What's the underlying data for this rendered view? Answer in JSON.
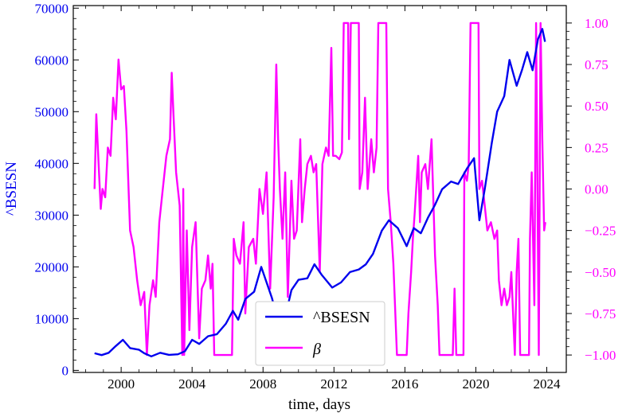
{
  "chart_data": {
    "type": "line",
    "xlabel": "time, days",
    "ylabel_left": "^BSESN",
    "ylabel_right": "",
    "xlim": [
      1997.3,
      2025.1
    ],
    "ylim_left": [
      -400,
      70500
    ],
    "ylim_right": [
      -1.105,
      1.105
    ],
    "x_ticks": [
      2000,
      2004,
      2008,
      2012,
      2016,
      2020,
      2024
    ],
    "y_left_ticks": [
      0,
      10000,
      20000,
      30000,
      40000,
      50000,
      60000,
      70000
    ],
    "y_right_ticks": [
      -1.0,
      -0.75,
      -0.5,
      -0.25,
      0.0,
      0.25,
      0.5,
      0.75,
      1.0
    ],
    "y_right_tick_labels": [
      "−1.00",
      "−0.75",
      "−0.50",
      "−0.25",
      "0.00",
      "0.25",
      "0.50",
      "0.75",
      "1.00"
    ],
    "grid": false,
    "legend_position": "bottom-center",
    "colors": {
      "bsesn": "#0000ee",
      "beta": "#ff00ff",
      "right_axis": "#ff00ff",
      "left_axis": "#0000ee"
    },
    "series": [
      {
        "name": "^BSESN",
        "axis": "left",
        "points": [
          [
            1998.5,
            3300
          ],
          [
            1998.9,
            2950
          ],
          [
            1999.3,
            3400
          ],
          [
            1999.7,
            4700
          ],
          [
            2000.1,
            5900
          ],
          [
            2000.5,
            4300
          ],
          [
            2001.0,
            4000
          ],
          [
            2001.3,
            3300
          ],
          [
            2001.7,
            2700
          ],
          [
            2002.2,
            3400
          ],
          [
            2002.7,
            3000
          ],
          [
            2003.2,
            3100
          ],
          [
            2003.6,
            3700
          ],
          [
            2004.0,
            5900
          ],
          [
            2004.4,
            5100
          ],
          [
            2004.9,
            6600
          ],
          [
            2005.4,
            7000
          ],
          [
            2005.9,
            9000
          ],
          [
            2006.3,
            11500
          ],
          [
            2006.6,
            9800
          ],
          [
            2007.0,
            13800
          ],
          [
            2007.5,
            15200
          ],
          [
            2007.9,
            20000
          ],
          [
            2008.2,
            17000
          ],
          [
            2008.5,
            14000
          ],
          [
            2008.9,
            9000
          ],
          [
            2009.2,
            9600
          ],
          [
            2009.6,
            15500
          ],
          [
            2010.0,
            17500
          ],
          [
            2010.5,
            17800
          ],
          [
            2010.9,
            20500
          ],
          [
            2011.3,
            18500
          ],
          [
            2011.9,
            16000
          ],
          [
            2012.4,
            17000
          ],
          [
            2012.9,
            19000
          ],
          [
            2013.4,
            19500
          ],
          [
            2013.8,
            20500
          ],
          [
            2014.2,
            22500
          ],
          [
            2014.7,
            27000
          ],
          [
            2015.1,
            29000
          ],
          [
            2015.6,
            27500
          ],
          [
            2016.1,
            24000
          ],
          [
            2016.5,
            27500
          ],
          [
            2016.9,
            26500
          ],
          [
            2017.3,
            29500
          ],
          [
            2017.7,
            32000
          ],
          [
            2018.1,
            35000
          ],
          [
            2018.6,
            36500
          ],
          [
            2019.0,
            36000
          ],
          [
            2019.5,
            39000
          ],
          [
            2019.9,
            41000
          ],
          [
            2020.2,
            29000
          ],
          [
            2020.5,
            35000
          ],
          [
            2020.9,
            44000
          ],
          [
            2021.2,
            50000
          ],
          [
            2021.6,
            53000
          ],
          [
            2021.9,
            60000
          ],
          [
            2022.3,
            55000
          ],
          [
            2022.6,
            58000
          ],
          [
            2022.9,
            61500
          ],
          [
            2023.2,
            58000
          ],
          [
            2023.5,
            64000
          ],
          [
            2023.75,
            66000
          ],
          [
            2023.9,
            63500
          ]
        ]
      },
      {
        "name": "β",
        "axis": "right",
        "points": [
          [
            1998.5,
            0.0
          ],
          [
            1998.6,
            0.45
          ],
          [
            1998.75,
            0.1
          ],
          [
            1998.85,
            -0.12
          ],
          [
            1998.95,
            0.0
          ],
          [
            1999.1,
            -0.05
          ],
          [
            1999.25,
            0.25
          ],
          [
            1999.4,
            0.2
          ],
          [
            1999.55,
            0.55
          ],
          [
            1999.7,
            0.42
          ],
          [
            1999.85,
            0.78
          ],
          [
            2000.0,
            0.6
          ],
          [
            2000.15,
            0.62
          ],
          [
            2000.3,
            0.35
          ],
          [
            2000.5,
            -0.25
          ],
          [
            2000.7,
            -0.35
          ],
          [
            2000.9,
            -0.55
          ],
          [
            2001.1,
            -0.7
          ],
          [
            2001.3,
            -0.62
          ],
          [
            2001.45,
            -1.0
          ],
          [
            2001.6,
            -0.7
          ],
          [
            2001.8,
            -0.55
          ],
          [
            2001.95,
            -0.65
          ],
          [
            2002.15,
            -0.2
          ],
          [
            2002.35,
            0.0
          ],
          [
            2002.55,
            0.2
          ],
          [
            2002.75,
            0.3
          ],
          [
            2002.85,
            0.7
          ],
          [
            2002.95,
            0.45
          ],
          [
            2003.1,
            0.1
          ],
          [
            2003.3,
            -0.1
          ],
          [
            2003.45,
            -1.0
          ],
          [
            2003.5,
            0.0
          ],
          [
            2003.55,
            -1.0
          ],
          [
            2003.7,
            -0.25
          ],
          [
            2003.85,
            -0.85
          ],
          [
            2004.0,
            -0.35
          ],
          [
            2004.2,
            -0.2
          ],
          [
            2004.4,
            -0.9
          ],
          [
            2004.55,
            -0.6
          ],
          [
            2004.75,
            -0.55
          ],
          [
            2004.9,
            -0.4
          ],
          [
            2005.05,
            -0.6
          ],
          [
            2005.15,
            -0.45
          ],
          [
            2005.25,
            -1.0
          ],
          [
            2005.8,
            -1.0
          ],
          [
            2006.25,
            -1.0
          ],
          [
            2006.35,
            -0.3
          ],
          [
            2006.5,
            -0.4
          ],
          [
            2006.7,
            -0.45
          ],
          [
            2006.9,
            -0.2
          ],
          [
            2007.0,
            -0.75
          ],
          [
            2007.2,
            -0.35
          ],
          [
            2007.45,
            -0.3
          ],
          [
            2007.6,
            -0.45
          ],
          [
            2007.8,
            0.0
          ],
          [
            2008.0,
            -0.15
          ],
          [
            2008.2,
            0.1
          ],
          [
            2008.4,
            -0.6
          ],
          [
            2008.6,
            -0.05
          ],
          [
            2008.75,
            0.75
          ],
          [
            2008.85,
            0.3
          ],
          [
            2008.95,
            0.0
          ],
          [
            2009.1,
            -0.3
          ],
          [
            2009.25,
            0.1
          ],
          [
            2009.4,
            -0.65
          ],
          [
            2009.6,
            0.05
          ],
          [
            2009.75,
            -0.3
          ],
          [
            2009.9,
            -0.25
          ],
          [
            2010.1,
            0.3
          ],
          [
            2010.2,
            -0.2
          ],
          [
            2010.35,
            0.0
          ],
          [
            2010.5,
            0.15
          ],
          [
            2010.7,
            0.2
          ],
          [
            2010.85,
            0.1
          ],
          [
            2011.0,
            0.15
          ],
          [
            2011.2,
            -0.5
          ],
          [
            2011.35,
            0.15
          ],
          [
            2011.55,
            0.25
          ],
          [
            2011.7,
            0.2
          ],
          [
            2011.85,
            0.85
          ],
          [
            2011.95,
            0.2
          ],
          [
            2012.1,
            0.2
          ],
          [
            2012.3,
            0.18
          ],
          [
            2012.45,
            0.22
          ],
          [
            2012.55,
            1.0
          ],
          [
            2012.8,
            1.0
          ],
          [
            2012.85,
            0.3
          ],
          [
            2012.95,
            1.0
          ],
          [
            2013.4,
            1.0
          ],
          [
            2013.45,
            0.0
          ],
          [
            2013.6,
            0.1
          ],
          [
            2013.75,
            0.55
          ],
          [
            2013.9,
            0.0
          ],
          [
            2014.1,
            0.3
          ],
          [
            2014.25,
            0.1
          ],
          [
            2014.4,
            0.25
          ],
          [
            2014.5,
            1.0
          ],
          [
            2014.95,
            1.0
          ],
          [
            2015.05,
            0.0
          ],
          [
            2015.2,
            -0.2
          ],
          [
            2015.35,
            -0.45
          ],
          [
            2015.55,
            -1.0
          ],
          [
            2016.1,
            -1.0
          ],
          [
            2016.2,
            -0.75
          ],
          [
            2016.35,
            -0.5
          ],
          [
            2016.45,
            -0.3
          ],
          [
            2016.55,
            -0.15
          ],
          [
            2016.75,
            0.2
          ],
          [
            2016.85,
            -0.2
          ],
          [
            2016.95,
            0.1
          ],
          [
            2017.15,
            0.15
          ],
          [
            2017.3,
            0.0
          ],
          [
            2017.5,
            0.3
          ],
          [
            2017.7,
            -0.4
          ],
          [
            2017.85,
            -0.7
          ],
          [
            2017.95,
            -1.0
          ],
          [
            2018.7,
            -1.0
          ],
          [
            2018.8,
            -0.6
          ],
          [
            2018.9,
            -1.0
          ],
          [
            2019.3,
            -1.0
          ],
          [
            2019.35,
            0.1
          ],
          [
            2019.5,
            0.05
          ],
          [
            2019.6,
            0.15
          ],
          [
            2019.7,
            1.0
          ],
          [
            2020.15,
            1.0
          ],
          [
            2020.2,
            0.0
          ],
          [
            2020.35,
            0.05
          ],
          [
            2020.5,
            -0.1
          ],
          [
            2020.65,
            -0.25
          ],
          [
            2020.85,
            -0.2
          ],
          [
            2021.05,
            -0.3
          ],
          [
            2021.2,
            -0.25
          ],
          [
            2021.3,
            -0.55
          ],
          [
            2021.45,
            -0.7
          ],
          [
            2021.6,
            -0.6
          ],
          [
            2021.75,
            -0.7
          ],
          [
            2021.9,
            -0.65
          ],
          [
            2022.0,
            -0.5
          ],
          [
            2022.2,
            -1.0
          ],
          [
            2022.3,
            -0.5
          ],
          [
            2022.4,
            -0.3
          ],
          [
            2022.5,
            -1.0
          ],
          [
            2023.0,
            -1.0
          ],
          [
            2023.05,
            -0.3
          ],
          [
            2023.15,
            0.1
          ],
          [
            2023.3,
            -0.7
          ],
          [
            2023.4,
            1.0
          ],
          [
            2023.55,
            -1.0
          ],
          [
            2023.65,
            1.0
          ],
          [
            2023.75,
            0.3
          ],
          [
            2023.85,
            -0.25
          ],
          [
            2023.92,
            -0.2
          ]
        ]
      }
    ]
  }
}
